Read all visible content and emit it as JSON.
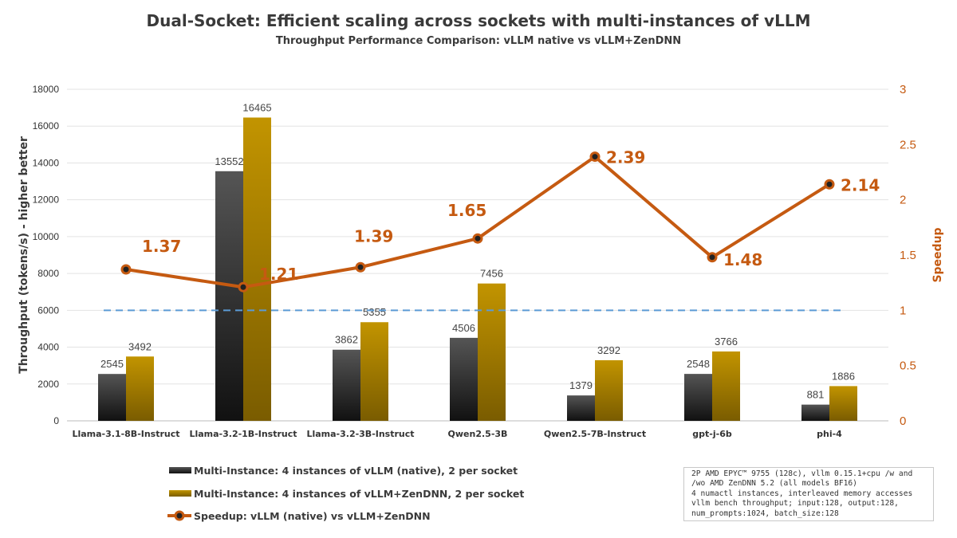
{
  "chart_data": {
    "type": "bar",
    "title": "Dual-Socket: Efficient scaling across sockets with multi-instances of vLLM",
    "subtitle": "Throughput Performance Comparison: vLLM native vs vLLM+ZenDNN",
    "ylabel": "Throughput (tokens/s) - higher better",
    "y2label": "Speedup",
    "ylim": [
      0,
      18000
    ],
    "y2lim": [
      0,
      3
    ],
    "yticks": [
      "0",
      "2000",
      "4000",
      "6000",
      "8000",
      "10000",
      "12000",
      "14000",
      "16000",
      "18000"
    ],
    "y2ticks": [
      "0",
      "0.5",
      "1",
      "1.5",
      "2",
      "2.5",
      "3"
    ],
    "grid": true,
    "legend": "bottom-left",
    "categories": [
      "Llama-3.1-8B-Instruct",
      "Llama-3.2-1B-Instruct",
      "Llama-3.2-3B-Instruct",
      "Qwen2.5-3B",
      "Qwen2.5-7B-Instruct",
      "gpt-j-6b",
      "phi-4"
    ],
    "series": [
      {
        "name": "Multi-Instance:  4 instances of vLLM (native), 2 per socket",
        "type": "bar",
        "color": "#2b2b2b",
        "values": [
          2545,
          13552,
          3862,
          4506,
          1379,
          2548,
          881
        ]
      },
      {
        "name": "Multi-Instance:  4 instances of vLLM+ZenDNN, 2 per socket",
        "type": "bar",
        "color": "#b88c00",
        "values": [
          3492,
          16465,
          5355,
          7456,
          3292,
          3766,
          1886
        ]
      },
      {
        "name": "Speedup: vLLM (native) vs vLLM+ZenDNN",
        "type": "line",
        "axis": "right",
        "color": "#c55a11",
        "values": [
          1.37,
          1.21,
          1.39,
          1.65,
          2.39,
          1.48,
          2.14
        ]
      }
    ],
    "reference_line": {
      "axis": "right",
      "value": 1,
      "style": "dashed",
      "color": "#5b9bd5"
    }
  },
  "note": "2P AMD EPYC™ 9755 (128c), vllm 0.15.1+cpu /w and\n/wo AMD ZenDNN 5.2 (all models BF16)\n4 numactl instances, interleaved memory accesses\nvllm bench throughput; input:128, output:128,\nnum_prompts:1024, batch_size:128"
}
